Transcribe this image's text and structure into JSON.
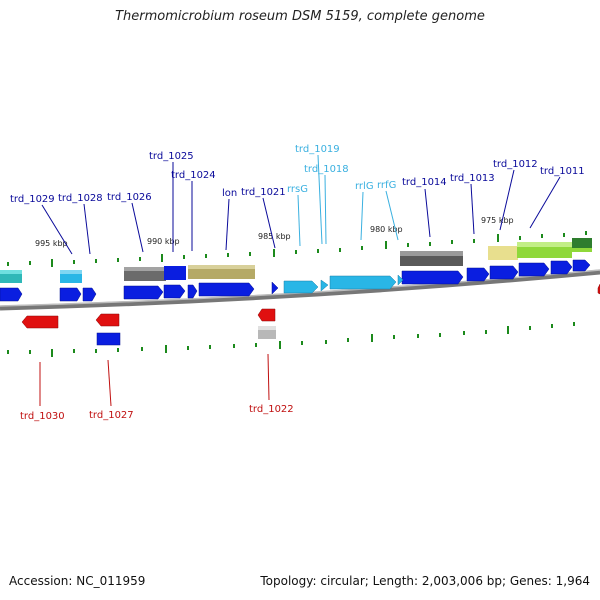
{
  "title": "Thermomicrobium roseum DSM 5159, complete genome",
  "footer": {
    "accession": "Accession: NC_011959",
    "summary": "Topology: circular; Length: 2,003,006 bp; Genes: 1,964"
  },
  "scale_labels": [
    "995 kbp",
    "990 kbp",
    "985 kbp",
    "980 kbp",
    "975 kbp"
  ],
  "gene_labels_top": [
    "trd_1029",
    "trd_1028",
    "trd_1026",
    "trd_1025",
    "trd_1024",
    "lon",
    "trd_1021",
    "rrsG",
    "trd_1019",
    "trd_1018",
    "rrlG",
    "rrfG",
    "trd_1014",
    "trd_1013",
    "trd_1012",
    "trd_1011"
  ],
  "gene_labels_bottom": [
    "trd_1030",
    "trd_1027",
    "trd_1022"
  ],
  "colors": {
    "forward_gene": "#0a1ee0",
    "reverse_gene": "#e01010",
    "rRNA": "#29b6e6",
    "backbone": "#888888",
    "tick": "#1c8a1c",
    "label_forward": "#0a0a9a",
    "label_rrna": "#3ab0e0",
    "label_reverse": "#c01010",
    "cog_gray": "#6b6b6b",
    "cog_olive": "#b5a966",
    "cog_yellow": "#e8df8e",
    "cog_green": "#8fd83a"
  }
}
